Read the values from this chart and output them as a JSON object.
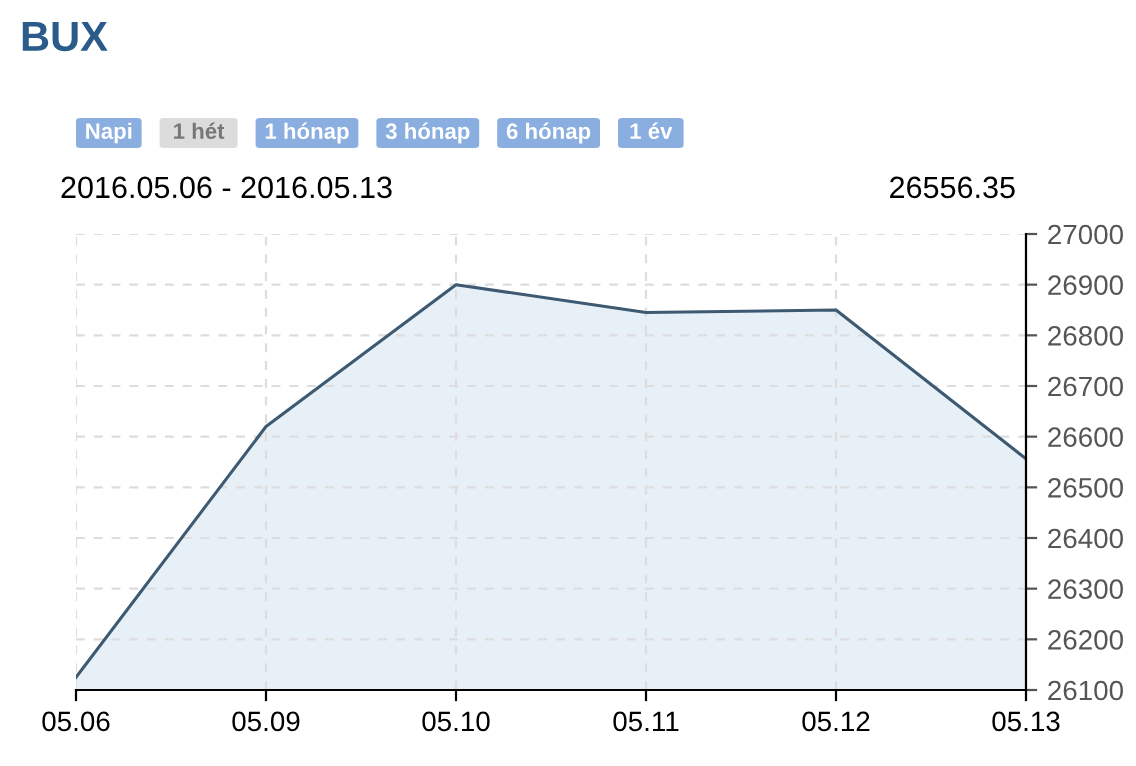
{
  "chart_data": {
    "type": "area",
    "title": "BUX",
    "subtitle": "2016.05.06 - 2016.05.13",
    "annotations": [
      "Napi",
      "1 hét",
      "1 hónap",
      "3 hónap",
      "6 hónap",
      "1 év",
      "26556.35"
    ],
    "categories": [
      "05.06",
      "05.09",
      "05.10",
      "05.11",
      "05.12",
      "05.13"
    ],
    "series": [
      {
        "color": "#3d5a72",
        "values": [
          26125,
          26620,
          26900,
          26845,
          26850,
          26556.35
        ]
      }
    ],
    "ylim": [
      26100,
      27000
    ],
    "yticks": [
      26100,
      26200,
      26300,
      26400,
      26500,
      26600,
      26700,
      26800,
      26900,
      27000
    ],
    "grid": true,
    "line_style": "solid",
    "marker": "none",
    "legend": false
  }
}
